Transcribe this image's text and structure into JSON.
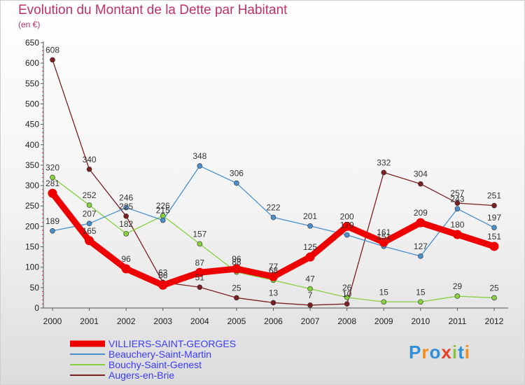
{
  "chart_data": {
    "type": "line",
    "title": "Evolution du Montant de la Dette par Habitant",
    "unit_label": "(en €)",
    "x": [
      "2000",
      "2001",
      "2002",
      "2003",
      "2004",
      "2005",
      "2006",
      "2007",
      "2008",
      "2009",
      "2010",
      "2011",
      "2012"
    ],
    "ylim": [
      0,
      650
    ],
    "yticks": [
      0,
      50,
      100,
      150,
      200,
      250,
      300,
      350,
      400,
      450,
      500,
      550,
      600,
      650
    ],
    "grid": false,
    "legend_position": "bottom-left",
    "series": [
      {
        "name": "VILLIERS-SAINT-GEORGES",
        "color": "#ee0000",
        "values": [
          281,
          165,
          96,
          56,
          87,
          96,
          77,
          125,
          200,
          161,
          209,
          180,
          151
        ]
      },
      {
        "name": "Beauchery-Saint-Martin",
        "color": "#4a8fcc",
        "values": [
          189,
          207,
          246,
          215,
          348,
          306,
          222,
          201,
          179,
          151,
          127,
          243,
          197
        ]
      },
      {
        "name": "Bouchy-Saint-Genest",
        "color": "#86cf3f",
        "values": [
          320,
          252,
          182,
          226,
          157,
          88,
          68,
          47,
          26,
          15,
          15,
          29,
          25
        ]
      },
      {
        "name": "Augers-en-Brie",
        "color": "#7a2020",
        "values": [
          608,
          340,
          225,
          63,
          51,
          25,
          13,
          7,
          10,
          332,
          304,
          257,
          251
        ]
      }
    ]
  },
  "logo": {
    "text": "Proxiti",
    "colors": [
      "#2f8fd8",
      "#f28c1a",
      "#2f8fd8",
      "#e8402a",
      "#8ac43f",
      "#2f8fd8",
      "#f28c1a"
    ]
  }
}
